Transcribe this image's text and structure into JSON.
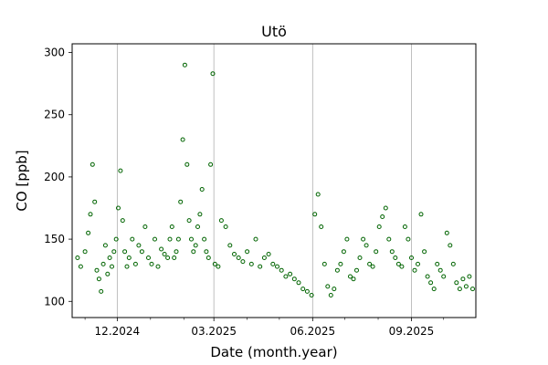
{
  "chart_data": {
    "type": "scatter",
    "title": "Utö",
    "xlabel": "Date (month.year)",
    "ylabel": "CO [ppb]",
    "xlim": [
      "2024-10-20",
      "2025-10-31"
    ],
    "ylim": [
      87,
      307
    ],
    "y_ticks": [
      100,
      150,
      200,
      250,
      300
    ],
    "x_ticks": [
      {
        "date": "2024-12-01",
        "label": "12.2024"
      },
      {
        "date": "2025-03-01",
        "label": "03.2025"
      },
      {
        "date": "2025-06-01",
        "label": "06.2025"
      },
      {
        "date": "2025-09-01",
        "label": "09.2025"
      }
    ],
    "x_minor_ticks": [
      "2024-11-01",
      "2025-01-01",
      "2025-02-01",
      "2025-04-01",
      "2025-05-01",
      "2025-07-01",
      "2025-08-01",
      "2025-10-01"
    ],
    "grid": "x-major",
    "marker": "hollow circle",
    "marker_color": "#006400",
    "series": [
      {
        "x": [
          "2024-10-25",
          "2024-10-28",
          "2024-11-01",
          "2024-11-04",
          "2024-11-06",
          "2024-11-08",
          "2024-11-10",
          "2024-11-12",
          "2024-11-14",
          "2024-11-16",
          "2024-11-18",
          "2024-11-20",
          "2024-11-22",
          "2024-11-24",
          "2024-11-26",
          "2024-11-28",
          "2024-11-30",
          "2024-12-02",
          "2024-12-04",
          "2024-12-06",
          "2024-12-08",
          "2024-12-10",
          "2024-12-12",
          "2024-12-15",
          "2024-12-18",
          "2024-12-21",
          "2024-12-24",
          "2024-12-27",
          "2024-12-30",
          "2025-01-02",
          "2025-01-05",
          "2025-01-08",
          "2025-01-11",
          "2025-01-14",
          "2025-01-17",
          "2025-01-19",
          "2025-01-21",
          "2025-01-23",
          "2025-01-25",
          "2025-01-27",
          "2025-01-29",
          "2025-01-31",
          "2025-02-02",
          "2025-02-04",
          "2025-02-06",
          "2025-02-08",
          "2025-02-10",
          "2025-02-12",
          "2025-02-14",
          "2025-02-16",
          "2025-02-18",
          "2025-02-20",
          "2025-02-22",
          "2025-02-24",
          "2025-02-26",
          "2025-02-28",
          "2025-03-02",
          "2025-03-05",
          "2025-03-08",
          "2025-03-12",
          "2025-03-16",
          "2025-03-20",
          "2025-03-24",
          "2025-03-28",
          "2025-04-01",
          "2025-04-05",
          "2025-04-09",
          "2025-04-13",
          "2025-04-17",
          "2025-04-21",
          "2025-04-25",
          "2025-04-29",
          "2025-05-03",
          "2025-05-07",
          "2025-05-11",
          "2025-05-15",
          "2025-05-19",
          "2025-05-23",
          "2025-05-27",
          "2025-05-31",
          "2025-06-03",
          "2025-06-06",
          "2025-06-09",
          "2025-06-12",
          "2025-06-15",
          "2025-06-18",
          "2025-06-21",
          "2025-06-24",
          "2025-06-27",
          "2025-06-30",
          "2025-07-03",
          "2025-07-06",
          "2025-07-09",
          "2025-07-12",
          "2025-07-15",
          "2025-07-18",
          "2025-07-21",
          "2025-07-24",
          "2025-07-27",
          "2025-07-30",
          "2025-08-02",
          "2025-08-05",
          "2025-08-08",
          "2025-08-11",
          "2025-08-14",
          "2025-08-17",
          "2025-08-20",
          "2025-08-23",
          "2025-08-26",
          "2025-08-29",
          "2025-09-01",
          "2025-09-04",
          "2025-09-07",
          "2025-09-10",
          "2025-09-13",
          "2025-09-16",
          "2025-09-19",
          "2025-09-22",
          "2025-09-25",
          "2025-09-28",
          "2025-10-01",
          "2025-10-04",
          "2025-10-07",
          "2025-10-10",
          "2025-10-13",
          "2025-10-16",
          "2025-10-19",
          "2025-10-22",
          "2025-10-25",
          "2025-10-28"
        ],
        "y": [
          135,
          128,
          140,
          155,
          170,
          210,
          180,
          125,
          118,
          108,
          130,
          145,
          122,
          135,
          128,
          140,
          150,
          175,
          205,
          165,
          140,
          128,
          135,
          150,
          130,
          145,
          140,
          160,
          135,
          130,
          150,
          128,
          142,
          138,
          135,
          150,
          160,
          135,
          140,
          150,
          180,
          230,
          290,
          210,
          165,
          150,
          140,
          145,
          160,
          170,
          190,
          150,
          140,
          135,
          210,
          283,
          130,
          128,
          165,
          160,
          145,
          138,
          135,
          132,
          140,
          130,
          150,
          128,
          135,
          138,
          130,
          128,
          125,
          120,
          122,
          118,
          115,
          110,
          108,
          105,
          170,
          186,
          160,
          130,
          112,
          105,
          110,
          125,
          130,
          140,
          150,
          120,
          118,
          125,
          135,
          150,
          145,
          130,
          128,
          140,
          160,
          168,
          175,
          150,
          140,
          135,
          130,
          128,
          160,
          150,
          135,
          125,
          130,
          170,
          140,
          120,
          115,
          110,
          130,
          125,
          120,
          155,
          145,
          130,
          115,
          110,
          118,
          112,
          120,
          110
        ]
      }
    ]
  }
}
